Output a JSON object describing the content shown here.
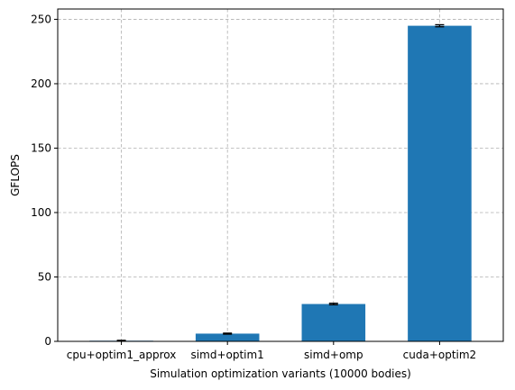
{
  "chart_data": {
    "type": "bar",
    "categories": [
      "cpu+optim1_approx",
      "simd+optim1",
      "simd+omp",
      "cuda+optim2"
    ],
    "values": [
      0.5,
      6,
      29,
      245
    ],
    "error": [
      0.3,
      0.4,
      0.6,
      0.8
    ],
    "xlabel": "Simulation optimization variants (10000 bodies)",
    "ylabel": "GFLOPS",
    "ylim": [
      0,
      258
    ],
    "yticks": [
      0,
      50,
      100,
      150,
      200,
      250
    ],
    "grid": true,
    "colors": {
      "bar": "#1f77b4",
      "grid": "#b0b0b0"
    }
  }
}
